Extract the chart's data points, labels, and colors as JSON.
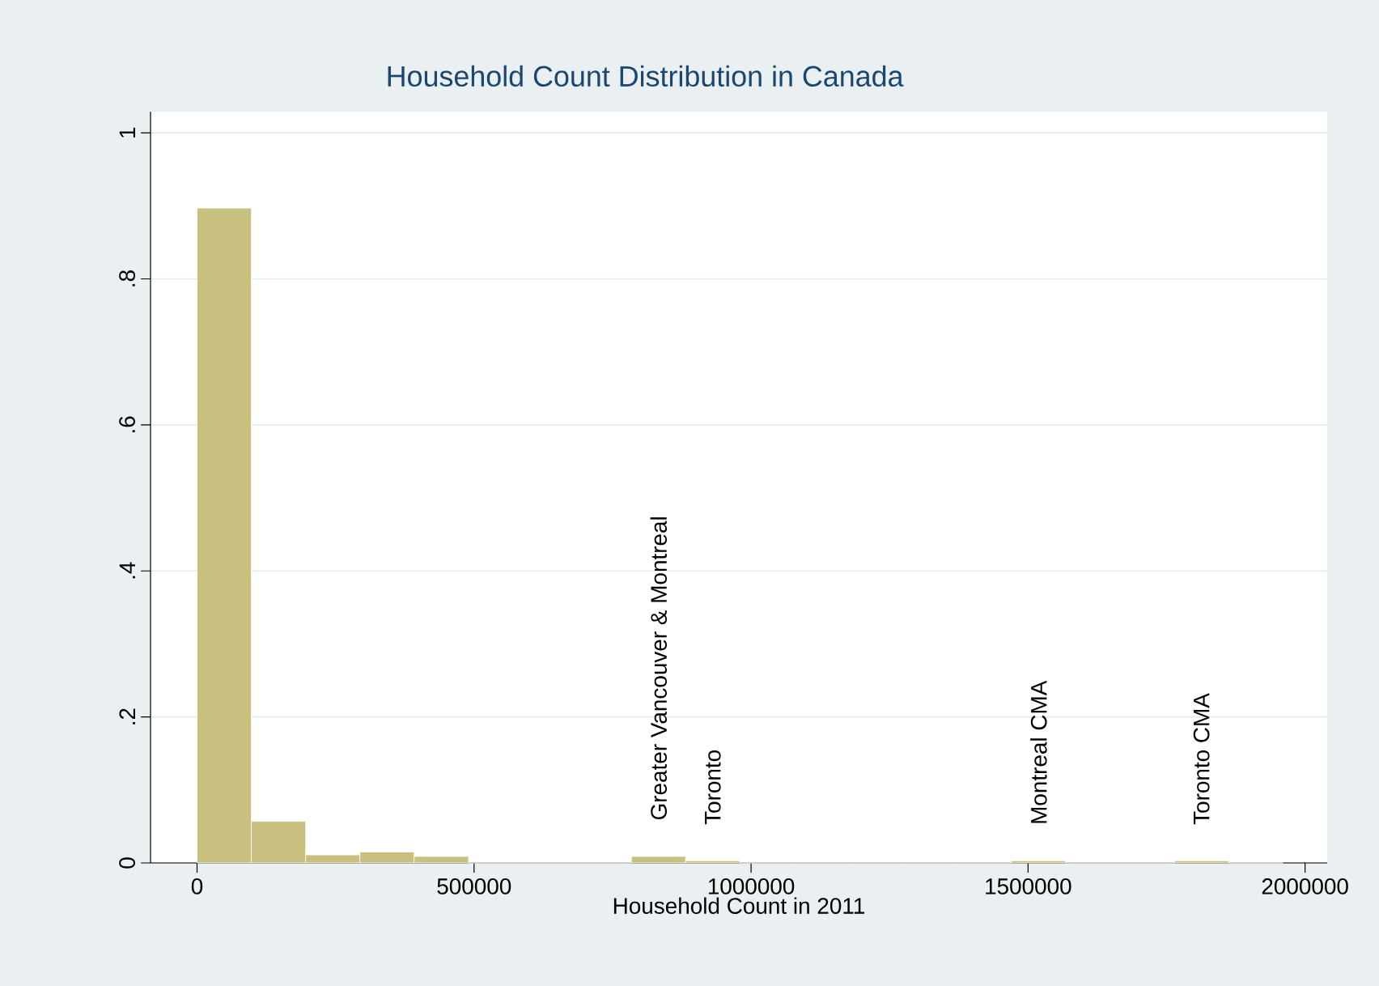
{
  "chart_data": {
    "type": "histogram",
    "title": "Household Count Distribution in Canada",
    "xlabel": "Household Count in 2011",
    "bins": [
      0,
      98000,
      196000,
      294000,
      392000,
      490000,
      588000,
      686000,
      784000,
      882000,
      980000,
      1078000,
      1176000,
      1274000,
      1372000,
      1470000,
      1568000,
      1666000,
      1764000,
      1862000,
      1960000
    ],
    "values": [
      0.897,
      0.057,
      0.011,
      0.015,
      0.009,
      0,
      0,
      0,
      0.009,
      0.003,
      0,
      0,
      0,
      0,
      0,
      0.003,
      0,
      0,
      0.003,
      0
    ],
    "color": "#c8c07e",
    "xlim": [
      -84000,
      2040000
    ],
    "xticks": [
      0,
      500000,
      1000000,
      1500000,
      2000000
    ],
    "ylim": [
      0,
      1.029
    ],
    "yticks": [
      0,
      {
        "value": 0.2,
        "label": ".2"
      },
      {
        "value": 0.4,
        "label": ".4"
      },
      {
        "value": 0.6,
        "label": ".6"
      },
      {
        "value": 0.8,
        "label": ".8"
      },
      1
    ],
    "grid": "y",
    "annotations": [
      {
        "text": "Greater Vancouver & Montreal",
        "x": 833000,
        "y": 0.009
      },
      {
        "text": "Toronto",
        "x": 931000,
        "y": 0.003
      },
      {
        "text": "Montreal CMA",
        "x": 1519000,
        "y": 0.003
      },
      {
        "text": "Toronto CMA",
        "x": 1813000,
        "y": 0.003
      }
    ]
  }
}
